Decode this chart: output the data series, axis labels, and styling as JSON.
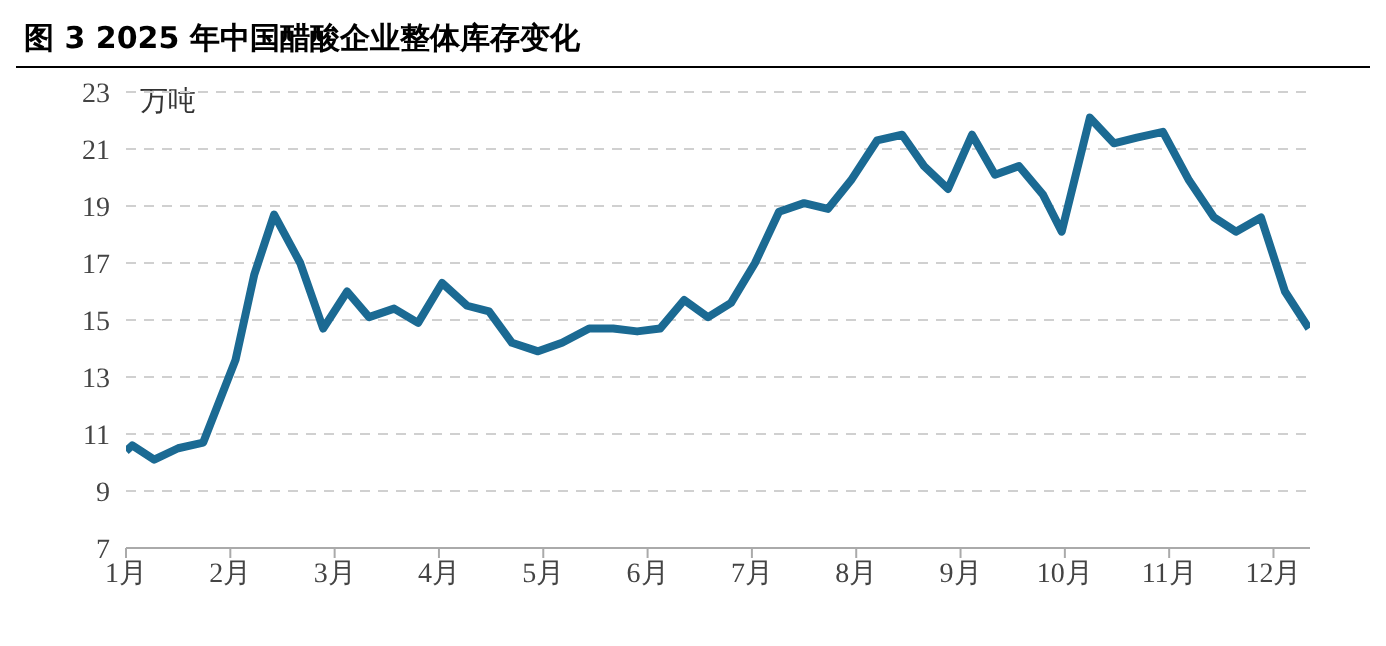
{
  "chart_data": {
    "type": "line",
    "title": "图 3 2025 年中国醋酸企业整体库存变化",
    "ylabel": "万吨",
    "series": [
      {
        "color": "#1b6a93",
        "x": [
          1.0,
          1.06,
          1.27,
          1.5,
          1.74,
          2.05,
          2.23,
          2.42,
          2.67,
          2.89,
          3.12,
          3.33,
          3.57,
          3.8,
          4.03,
          4.27,
          4.48,
          4.7,
          4.95,
          5.18,
          5.44,
          5.67,
          5.9,
          6.12,
          6.35,
          6.58,
          6.8,
          7.03,
          7.26,
          7.5,
          7.73,
          7.95,
          8.2,
          8.44,
          8.65,
          8.88,
          9.11,
          9.33,
          9.56,
          9.79,
          9.97,
          10.24,
          10.47,
          10.69,
          10.94,
          11.19,
          11.43,
          11.64,
          11.88,
          12.11,
          12.34
        ],
        "values": [
          10.4,
          10.6,
          10.1,
          10.5,
          10.7,
          13.6,
          16.6,
          18.7,
          17.0,
          14.7,
          16.0,
          15.1,
          15.4,
          14.9,
          16.3,
          15.5,
          15.3,
          14.2,
          13.9,
          14.2,
          14.7,
          14.7,
          14.6,
          14.7,
          15.7,
          15.1,
          15.6,
          17.0,
          18.8,
          19.1,
          18.9,
          19.9,
          21.3,
          21.5,
          20.4,
          19.6,
          21.5,
          20.1,
          20.4,
          19.4,
          18.1,
          22.1,
          21.2,
          21.4,
          21.6,
          19.9,
          18.6,
          18.1,
          18.6,
          16.0,
          14.7
        ]
      }
    ],
    "xlim": [
      1,
      12.35
    ],
    "xticks": [
      {
        "value": 1,
        "label": "1月"
      },
      {
        "value": 2,
        "label": "2月"
      },
      {
        "value": 3,
        "label": "3月"
      },
      {
        "value": 4,
        "label": "4月"
      },
      {
        "value": 5,
        "label": "5月"
      },
      {
        "value": 6,
        "label": "6月"
      },
      {
        "value": 7,
        "label": "7月"
      },
      {
        "value": 8,
        "label": "8月"
      },
      {
        "value": 9,
        "label": "9月"
      },
      {
        "value": 10,
        "label": "10月"
      },
      {
        "value": 11,
        "label": "11月"
      },
      {
        "value": 12,
        "label": "12月"
      }
    ],
    "ylim": [
      7,
      23
    ],
    "yticks": [
      7,
      9,
      11,
      13,
      15,
      17,
      19,
      21,
      23
    ],
    "grid": "y",
    "legend": false,
    "marker": "none",
    "line_style": "solid"
  }
}
